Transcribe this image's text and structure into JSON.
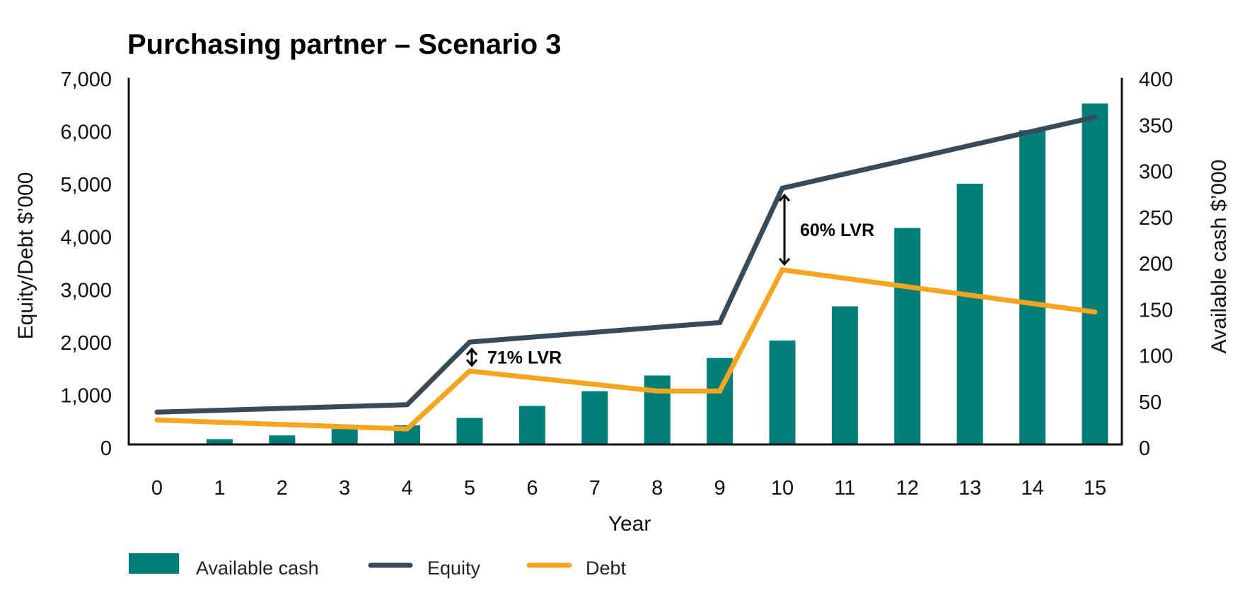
{
  "chart_data": {
    "type": "bar+line",
    "title": "Purchasing partner – Scenario 3",
    "xlabel": "Year",
    "ylabel_left": "Equity/Debt $’000",
    "ylabel_right": "Available cash $’000",
    "categories": [
      "0",
      "1",
      "2",
      "3",
      "4",
      "5",
      "6",
      "7",
      "8",
      "9",
      "10",
      "11",
      "12",
      "13",
      "14",
      "15"
    ],
    "ylim_left": [
      0,
      7000
    ],
    "ylim_right": [
      0,
      400
    ],
    "yticks_left": [
      "0",
      "1,000",
      "2,000",
      "3,000",
      "4,000",
      "5,000",
      "6,000",
      "7,000"
    ],
    "yticks_left_values": [
      0,
      1000,
      2000,
      3000,
      4000,
      5000,
      6000,
      7000
    ],
    "yticks_right": [
      "0",
      "50",
      "100",
      "150",
      "200",
      "250",
      "300",
      "350",
      "400"
    ],
    "yticks_right_values": [
      0,
      50,
      100,
      150,
      200,
      250,
      300,
      350,
      400
    ],
    "grid": false,
    "legend_position": "bottom-left",
    "series": [
      {
        "name": "Available cash",
        "type": "bar",
        "axis": "right",
        "color": "#007f78",
        "values": [
          0,
          5,
          9,
          16,
          20,
          28,
          41,
          57,
          74,
          93,
          112,
          149,
          234,
          282,
          340,
          369
        ]
      },
      {
        "name": "Equity",
        "type": "line",
        "axis": "left",
        "color": "#374b5a",
        "values": [
          600,
          635,
          670,
          705,
          740,
          1930,
          2023,
          2115,
          2208,
          2300,
          4850,
          5120,
          5390,
          5660,
          5930,
          6200
        ]
      },
      {
        "name": "Debt",
        "type": "line",
        "axis": "left",
        "color": "#f6a51e",
        "values": [
          450,
          408,
          365,
          323,
          280,
          1380,
          1253,
          1127,
          1000,
          1000,
          3300,
          3140,
          2980,
          2820,
          2660,
          2500
        ]
      }
    ],
    "annotations": [
      {
        "text": "71% LVR",
        "x": "5"
      },
      {
        "text": "60% LVR",
        "x": "10"
      }
    ]
  },
  "legend": {
    "items": [
      {
        "label": "Available cash",
        "kind": "box",
        "color": "#007f78"
      },
      {
        "label": "Equity",
        "kind": "line",
        "color": "#374b5a"
      },
      {
        "label": "Debt",
        "kind": "line",
        "color": "#f6a51e"
      }
    ]
  }
}
